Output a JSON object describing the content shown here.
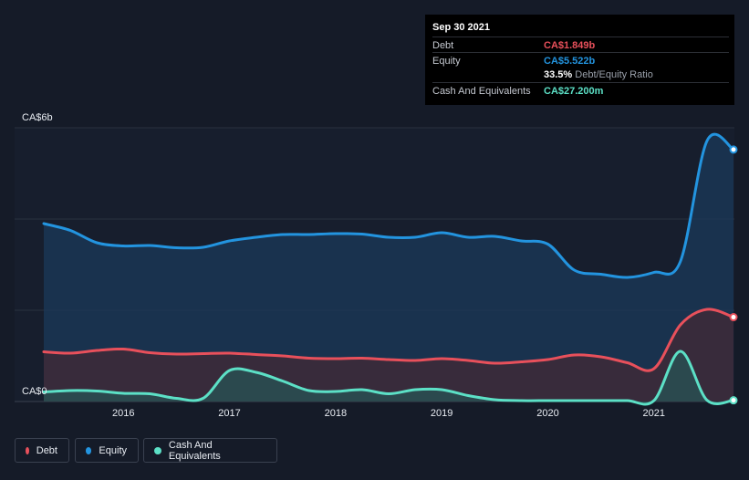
{
  "chart_data": {
    "type": "area",
    "currency_unit": "CA$",
    "y_top_label": "CA$6b",
    "y_bottom_label": "CA$0",
    "ylim": [
      0,
      6
    ],
    "x_tick_labels": [
      "2016",
      "2017",
      "2018",
      "2019",
      "2020",
      "2021"
    ],
    "x_tick_years": [
      2016,
      2017,
      2018,
      2019,
      2020,
      2021
    ],
    "xlim": [
      2015.25,
      2021.75
    ],
    "colors": {
      "debt": "#e8505b",
      "equity": "#2394df",
      "cash": "#5ce0c6"
    },
    "series": [
      {
        "name": "Debt",
        "key": "debt",
        "x": [
          2015.25,
          2015.5,
          2015.75,
          2016.0,
          2016.25,
          2016.5,
          2016.75,
          2017.0,
          2017.25,
          2017.5,
          2017.75,
          2018.0,
          2018.25,
          2018.5,
          2018.75,
          2019.0,
          2019.25,
          2019.5,
          2019.75,
          2020.0,
          2020.25,
          2020.5,
          2020.75,
          2021.0,
          2021.25,
          2021.5,
          2021.75
        ],
        "values": [
          1.09,
          1.06,
          1.12,
          1.15,
          1.07,
          1.04,
          1.05,
          1.06,
          1.03,
          1.0,
          0.95,
          0.94,
          0.95,
          0.92,
          0.9,
          0.94,
          0.9,
          0.84,
          0.87,
          0.92,
          1.02,
          0.98,
          0.85,
          0.72,
          1.68,
          2.02,
          1.849
        ]
      },
      {
        "name": "Equity",
        "key": "equity",
        "x": [
          2015.25,
          2015.5,
          2015.75,
          2016.0,
          2016.25,
          2016.5,
          2016.75,
          2017.0,
          2017.25,
          2017.5,
          2017.75,
          2018.0,
          2018.25,
          2018.5,
          2018.75,
          2019.0,
          2019.25,
          2019.5,
          2019.75,
          2020.0,
          2020.25,
          2020.5,
          2020.75,
          2021.0,
          2021.25,
          2021.5,
          2021.75
        ],
        "values": [
          3.9,
          3.75,
          3.48,
          3.41,
          3.42,
          3.37,
          3.38,
          3.52,
          3.6,
          3.66,
          3.66,
          3.68,
          3.67,
          3.6,
          3.6,
          3.7,
          3.6,
          3.62,
          3.52,
          3.45,
          2.88,
          2.79,
          2.72,
          2.83,
          3.07,
          5.71,
          5.522
        ]
      },
      {
        "name": "Cash And Equivalents",
        "key": "cash",
        "x": [
          2015.25,
          2015.5,
          2015.75,
          2016.0,
          2016.25,
          2016.5,
          2016.75,
          2017.0,
          2017.25,
          2017.5,
          2017.75,
          2018.0,
          2018.25,
          2018.5,
          2018.75,
          2019.0,
          2019.25,
          2019.5,
          2019.75,
          2020.0,
          2020.25,
          2020.5,
          2020.75,
          2021.0,
          2021.25,
          2021.5,
          2021.75
        ],
        "values": [
          0.21,
          0.24,
          0.23,
          0.18,
          0.17,
          0.07,
          0.07,
          0.68,
          0.64,
          0.45,
          0.24,
          0.22,
          0.26,
          0.17,
          0.26,
          0.26,
          0.13,
          0.04,
          0.02,
          0.02,
          0.02,
          0.02,
          0.02,
          0.02,
          1.1,
          0.03,
          0.0272
        ]
      }
    ],
    "legend": [
      "Debt",
      "Equity",
      "Cash And Equivalents"
    ],
    "legend_position": "bottom-left"
  },
  "tooltip": {
    "date": "Sep 30 2021",
    "debt_label": "Debt",
    "debt_value": "CA$1.849b",
    "equity_label": "Equity",
    "equity_value": "CA$5.522b",
    "ratio_value": "33.5%",
    "ratio_label": "Debt/Equity Ratio",
    "cash_label": "Cash And Equivalents",
    "cash_value": "CA$27.200m"
  },
  "legend_labels": {
    "debt": "Debt",
    "equity": "Equity",
    "cash": "Cash And Equivalents"
  }
}
